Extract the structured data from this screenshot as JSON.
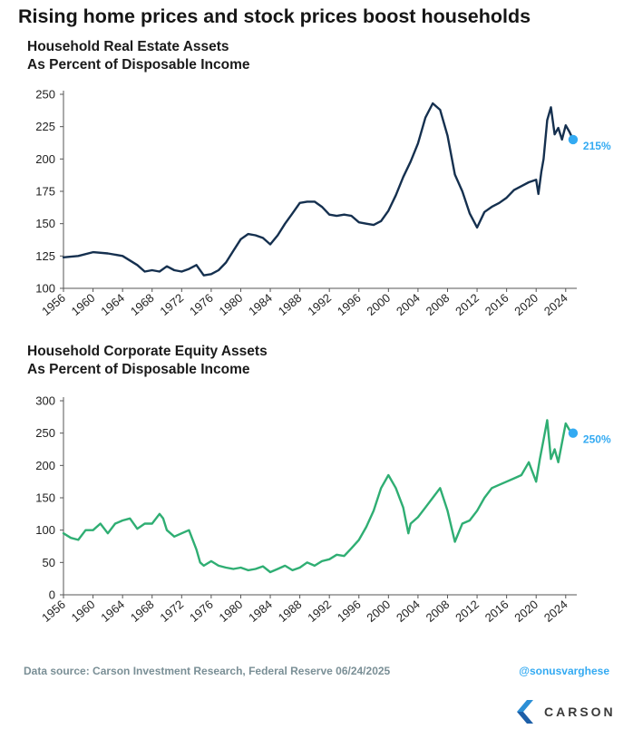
{
  "header": {
    "title": "Rising home prices and stock prices boost households"
  },
  "footer": {
    "source": "Data source: Carson Investment Research, Federal Reserve  06/24/2025",
    "handle": "@sonusvarghese",
    "brand": "CARSON"
  },
  "colors": {
    "real_estate_line": "#15304f",
    "equity_line": "#2fae73",
    "end_marker": "#33aaf2"
  },
  "chart_data": [
    {
      "type": "line",
      "title": "Household Real Estate Assets",
      "subtitle": "As Percent of Disposable Income",
      "xlabel": "",
      "ylabel": "",
      "xlim": [
        1956,
        2025.5
      ],
      "ylim": [
        100,
        250
      ],
      "yticks": [
        100,
        125,
        150,
        175,
        200,
        225,
        250
      ],
      "xticks": [
        1956,
        1960,
        1964,
        1968,
        1972,
        1976,
        1980,
        1984,
        1988,
        1992,
        1996,
        2000,
        2004,
        2008,
        2012,
        2016,
        2020,
        2024
      ],
      "grid": false,
      "end_label": "215%",
      "series": [
        {
          "x": [
            1956,
            1958,
            1960,
            1962,
            1964,
            1966,
            1967,
            1968,
            1969,
            1970,
            1971,
            1972,
            1973,
            1974,
            1975,
            1976,
            1977,
            1978,
            1979,
            1980,
            1981,
            1982,
            1983,
            1984,
            1985,
            1986,
            1987,
            1988,
            1989,
            1990,
            1991,
            1992,
            1993,
            1994,
            1995,
            1996,
            1997,
            1998,
            1999,
            2000,
            2001,
            2002,
            2003,
            2004,
            2005,
            2006,
            2007,
            2008,
            2009,
            2010,
            2011,
            2012,
            2013,
            2014,
            2015,
            2016,
            2017,
            2018,
            2019,
            2020,
            2020.3,
            2020.7,
            2021,
            2021.5,
            2022,
            2022.5,
            2023,
            2023.5,
            2024,
            2024.5,
            2025
          ],
          "y": [
            124,
            125,
            128,
            127,
            125,
            118,
            113,
            114,
            113,
            117,
            114,
            113,
            115,
            118,
            110,
            111,
            114,
            120,
            129,
            138,
            142,
            141,
            139,
            134,
            141,
            150,
            158,
            166,
            167,
            167,
            163,
            157,
            156,
            157,
            156,
            151,
            150,
            149,
            152,
            160,
            172,
            186,
            198,
            212,
            232,
            243,
            238,
            218,
            188,
            175,
            158,
            147,
            159,
            163,
            166,
            170,
            176,
            179,
            182,
            184,
            173,
            190,
            200,
            230,
            240,
            219,
            224,
            215,
            226,
            221,
            215
          ]
        }
      ]
    },
    {
      "type": "line",
      "title": "Household Corporate Equity Assets",
      "subtitle": "As Percent of Disposable Income",
      "xlabel": "",
      "ylabel": "",
      "xlim": [
        1956,
        2025.5
      ],
      "ylim": [
        0,
        300
      ],
      "yticks": [
        0,
        50,
        100,
        150,
        200,
        250,
        300
      ],
      "xticks": [
        1956,
        1960,
        1964,
        1968,
        1972,
        1976,
        1980,
        1984,
        1988,
        1992,
        1996,
        2000,
        2004,
        2008,
        2012,
        2016,
        2020,
        2024
      ],
      "grid": false,
      "end_label": "250%",
      "series": [
        {
          "x": [
            1956,
            1957,
            1958,
            1959,
            1960,
            1961,
            1962,
            1963,
            1964,
            1965,
            1966,
            1967,
            1968,
            1969,
            1969.5,
            1970,
            1971,
            1972,
            1973,
            1974,
            1974.5,
            1975,
            1976,
            1977,
            1978,
            1979,
            1980,
            1981,
            1982,
            1983,
            1984,
            1985,
            1986,
            1987,
            1988,
            1989,
            1990,
            1991,
            1992,
            1993,
            1994,
            1995,
            1996,
            1997,
            1998,
            1999,
            2000,
            2001,
            2002,
            2002.7,
            2003,
            2004,
            2005,
            2006,
            2007,
            2008,
            2009,
            2010,
            2011,
            2012,
            2013,
            2014,
            2015,
            2016,
            2017,
            2018,
            2019,
            2020,
            2020.5,
            2021,
            2021.5,
            2022,
            2022.5,
            2023,
            2023.5,
            2024,
            2024.5,
            2025
          ],
          "y": [
            95,
            88,
            85,
            100,
            100,
            110,
            95,
            110,
            115,
            118,
            102,
            110,
            110,
            125,
            118,
            100,
            90,
            95,
            100,
            70,
            50,
            45,
            52,
            45,
            42,
            40,
            42,
            38,
            40,
            44,
            35,
            40,
            45,
            38,
            42,
            50,
            45,
            52,
            55,
            62,
            60,
            72,
            85,
            105,
            130,
            165,
            185,
            165,
            135,
            95,
            110,
            120,
            135,
            150,
            165,
            130,
            82,
            110,
            115,
            130,
            150,
            165,
            170,
            175,
            180,
            185,
            205,
            175,
            210,
            240,
            270,
            210,
            225,
            205,
            235,
            265,
            255,
            250
          ]
        }
      ]
    }
  ]
}
